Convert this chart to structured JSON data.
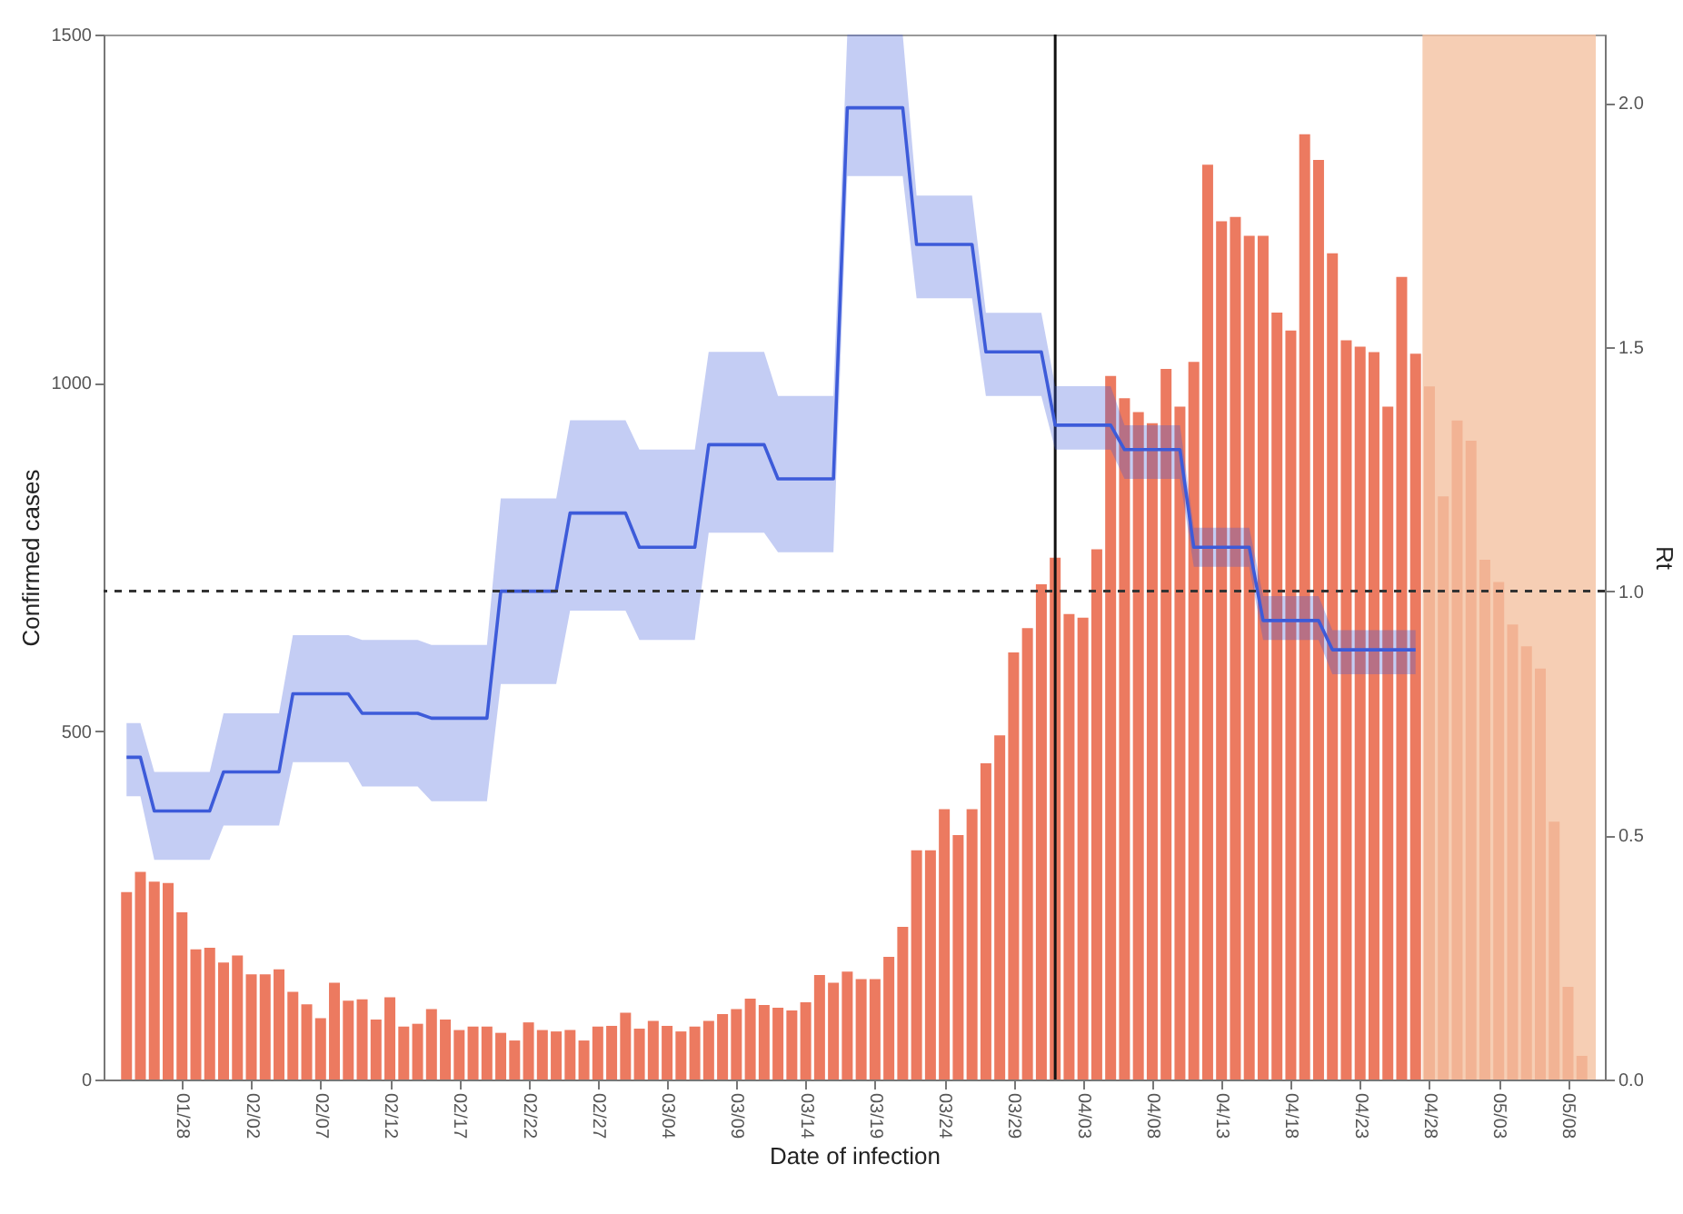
{
  "chart_data": {
    "type": "bar",
    "xlabel": "Date of infection",
    "ylabel": "Confirmed cases",
    "y2label": "Rt",
    "x": [
      "--01-24",
      "--01-25",
      "--01-26",
      "--01-27",
      "--01-28",
      "--01-29",
      "--01-30",
      "--01-31",
      "--02-01",
      "--02-02",
      "--02-03",
      "--02-04",
      "--02-05",
      "--02-06",
      "--02-07",
      "--02-08",
      "--02-09",
      "--02-10",
      "--02-11",
      "--02-12",
      "--02-13",
      "--02-14",
      "--02-15",
      "--02-16",
      "--02-17",
      "--02-18",
      "--02-19",
      "--02-20",
      "--02-21",
      "--02-22",
      "--02-23",
      "--02-24",
      "--02-25",
      "--02-26",
      "--02-27",
      "--02-28",
      "--03-01",
      "--03-02",
      "--03-03",
      "--03-04",
      "--03-05",
      "--03-06",
      "--03-07",
      "--03-08",
      "--03-09",
      "--03-10",
      "--03-11",
      "--03-12",
      "--03-13",
      "--03-14",
      "--03-15",
      "--03-16",
      "--03-17",
      "--03-18",
      "--03-19",
      "--03-20",
      "--03-21",
      "--03-22",
      "--03-23",
      "--03-24",
      "--03-25",
      "--03-26",
      "--03-27",
      "--03-28",
      "--03-29",
      "--03-30",
      "--03-31",
      "--04-01",
      "--04-02",
      "--04-03",
      "--04-04",
      "--04-05",
      "--04-06",
      "--04-07",
      "--04-08",
      "--04-09",
      "--04-10",
      "--04-11",
      "--04-12",
      "--04-13",
      "--04-14",
      "--04-15",
      "--04-16",
      "--04-17",
      "--04-18",
      "--04-19",
      "--04-20",
      "--04-21",
      "--04-22",
      "--04-23",
      "--04-24",
      "--04-25",
      "--04-26",
      "--04-27",
      "--04-28",
      "--04-29",
      "--04-30",
      "--05-01",
      "--05-02",
      "--05-03",
      "--05-04",
      "--05-05",
      "--05-06",
      "--05-07",
      "--05-08",
      "--05-09"
    ],
    "series": [
      {
        "color": "#ec7a60",
        "values": [
          269,
          298,
          284,
          282,
          240,
          187,
          189,
          168,
          178,
          151,
          151,
          158,
          126,
          108,
          88,
          139,
          113,
          115,
          86,
          118,
          76,
          80,
          101,
          86,
          71,
          76,
          76,
          67,
          56,
          82,
          71,
          69,
          71,
          56,
          76,
          77,
          96,
          73,
          84,
          77,
          69,
          76,
          84,
          94,
          101,
          116,
          107,
          103,
          99,
          111,
          150,
          139,
          155,
          144,
          144,
          176,
          219,
          329,
          329,
          388,
          351,
          388,
          454,
          494,
          613,
          648,
          711,
          749,
          668,
          663,
          761,
          1010,
          978,
          958,
          942,
          1020,
          966,
          1030,
          1313,
          1232,
          1238,
          1211,
          1211,
          1101,
          1075,
          1357,
          1320,
          1186,
          1061,
          1052,
          1044,
          966,
          1152,
          1042,
          995,
          837,
          946,
          917,
          746,
          714,
          653,
          622,
          590,
          370,
          133,
          34
        ]
      },
      {
        "type": "line",
        "axis": "y2",
        "color": "#3d5bd9",
        "x": [
          "--01-24",
          "--01-25",
          "--01-26",
          "--01-30",
          "--01-31",
          "--02-04",
          "--02-05",
          "--02-09",
          "--02-10",
          "--02-14",
          "--02-15",
          "--02-19",
          "--02-20",
          "--02-24",
          "--02-25",
          "--03-01",
          "--03-02",
          "--03-06",
          "--03-07",
          "--03-11",
          "--03-12",
          "--03-16",
          "--03-17",
          "--03-21",
          "--03-22",
          "--03-26",
          "--03-27",
          "--03-31",
          "--04-01",
          "--04-05",
          "--04-06",
          "--04-10",
          "--04-11",
          "--04-15",
          "--04-16",
          "--04-20",
          "--04-21",
          "--04-27"
        ],
        "values": [
          0.66,
          0.66,
          0.55,
          0.55,
          0.63,
          0.63,
          0.79,
          0.79,
          0.75,
          0.75,
          0.74,
          0.74,
          1.0,
          1.0,
          1.16,
          1.16,
          1.09,
          1.09,
          1.3,
          1.3,
          1.23,
          1.23,
          1.99,
          1.99,
          1.71,
          1.71,
          1.49,
          1.49,
          1.34,
          1.34,
          1.29,
          1.29,
          1.09,
          1.09,
          0.94,
          0.94,
          0.88,
          0.88
        ],
        "lower": [
          0.58,
          0.58,
          0.45,
          0.45,
          0.52,
          0.52,
          0.65,
          0.65,
          0.6,
          0.6,
          0.57,
          0.57,
          0.81,
          0.81,
          0.96,
          0.96,
          0.9,
          0.9,
          1.12,
          1.12,
          1.08,
          1.08,
          1.85,
          1.85,
          1.6,
          1.6,
          1.4,
          1.4,
          1.29,
          1.29,
          1.23,
          1.23,
          1.05,
          1.05,
          0.9,
          0.9,
          0.83,
          0.83
        ],
        "upper": [
          0.73,
          0.73,
          0.63,
          0.63,
          0.75,
          0.75,
          0.91,
          0.91,
          0.9,
          0.9,
          0.89,
          0.89,
          1.19,
          1.19,
          1.35,
          1.35,
          1.29,
          1.29,
          1.49,
          1.49,
          1.4,
          1.4,
          2.14,
          2.14,
          1.81,
          1.81,
          1.57,
          1.57,
          1.42,
          1.42,
          1.34,
          1.34,
          1.13,
          1.13,
          0.99,
          0.99,
          0.92,
          0.92
        ]
      }
    ],
    "xlim": [
      "--01-23",
      "--05-10"
    ],
    "xticks": [
      {
        "value": "--01-28",
        "label": "01/28"
      },
      {
        "value": "--02-02",
        "label": "02/02"
      },
      {
        "value": "--02-07",
        "label": "02/07"
      },
      {
        "value": "--02-12",
        "label": "02/12"
      },
      {
        "value": "--02-17",
        "label": "02/17"
      },
      {
        "value": "--02-22",
        "label": "02/22"
      },
      {
        "value": "--02-27",
        "label": "02/27"
      },
      {
        "value": "--03-04",
        "label": "03/04"
      },
      {
        "value": "--03-09",
        "label": "03/09"
      },
      {
        "value": "--03-14",
        "label": "03/14"
      },
      {
        "value": "--03-19",
        "label": "03/19"
      },
      {
        "value": "--03-24",
        "label": "03/24"
      },
      {
        "value": "--03-29",
        "label": "03/29"
      },
      {
        "value": "--04-03",
        "label": "04/03"
      },
      {
        "value": "--04-08",
        "label": "04/08"
      },
      {
        "value": "--04-13",
        "label": "04/13"
      },
      {
        "value": "--04-18",
        "label": "04/18"
      },
      {
        "value": "--04-23",
        "label": "04/23"
      },
      {
        "value": "--04-28",
        "label": "04/28"
      },
      {
        "value": "--05-03",
        "label": "05/03"
      },
      {
        "value": "--05-08",
        "label": "05/08"
      }
    ],
    "ylim": [
      0,
      1500
    ],
    "yticks": [
      0,
      500,
      1000,
      1500
    ],
    "y2lim": [
      0,
      2.14
    ],
    "y2ticks": [
      {
        "value": 0,
        "label": "0.0"
      },
      {
        "value": 0.5,
        "label": "0.5"
      },
      {
        "value": 1,
        "label": "1.0"
      },
      {
        "value": 1.5,
        "label": "1.5"
      },
      {
        "value": 2,
        "label": "2.0"
      }
    ],
    "ref_lines": [
      {
        "axis": "y2",
        "value": 1,
        "line_style": "dashed",
        "color": "#333333"
      },
      {
        "axis": "x",
        "value": "--04-01",
        "line_style": "solid",
        "color": "#111111"
      }
    ],
    "bands": [
      {
        "axis": "x",
        "from": "--04-27T12:00",
        "to": "--05-10",
        "color": "#f4c2a1"
      }
    ]
  }
}
